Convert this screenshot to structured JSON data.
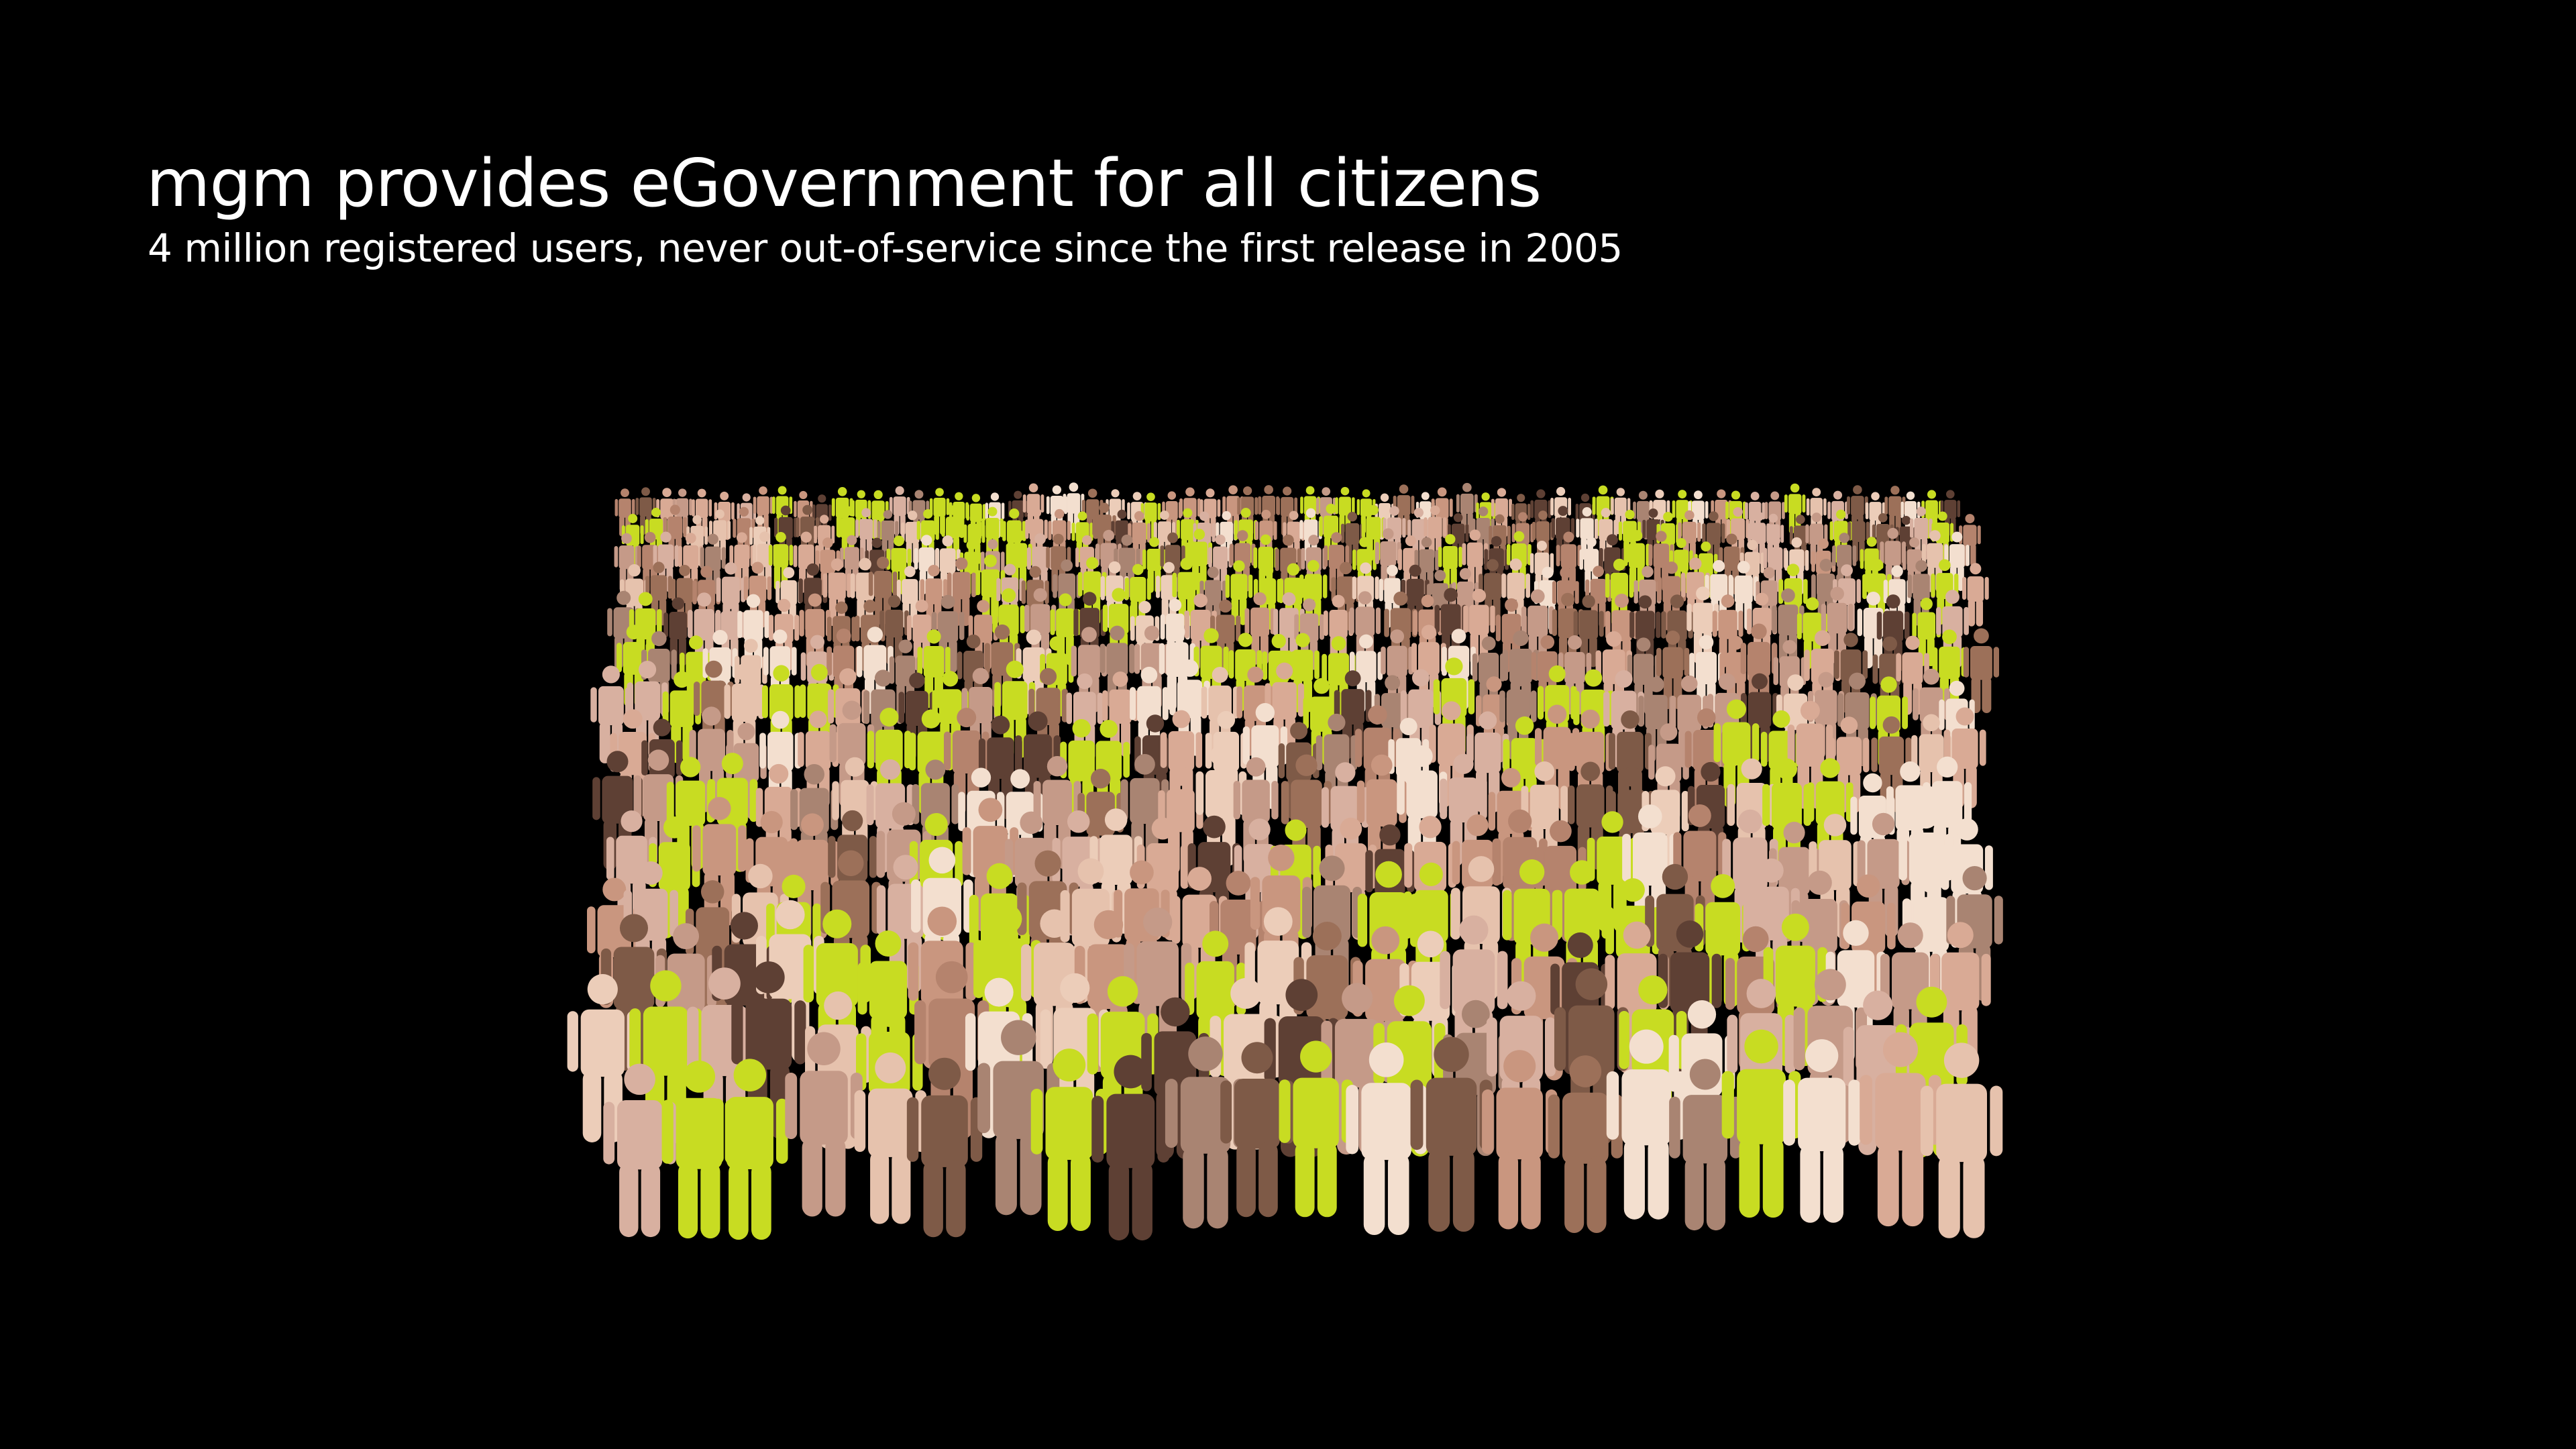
{
  "slide": {
    "title": "mgm provides eGovernment for all citizens",
    "subtitle": "4 million registered users, never out-of-service since the first release in 2005"
  },
  "colors": {
    "background": "#000000",
    "text": "#ffffff",
    "accent": "#c8dc22",
    "skin_tones": [
      "#f3dfcf",
      "#e6c2ad",
      "#d9aa95",
      "#c9967f",
      "#b5836d",
      "#9c7059",
      "#7e5a47",
      "#5e4034",
      "#d8b0a0",
      "#eccdb9",
      "#c59a88",
      "#a98472"
    ]
  },
  "illustration": {
    "icon": "people-crowd-icon",
    "figure_icon": "person-icon"
  }
}
